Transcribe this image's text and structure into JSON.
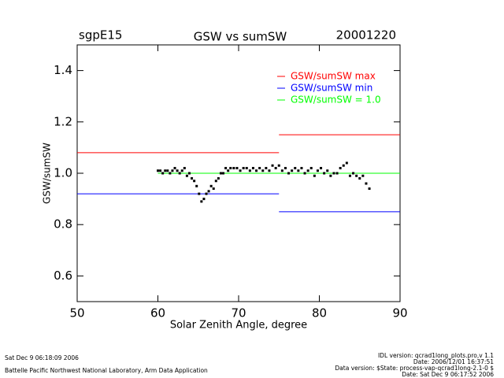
{
  "chart_data": {
    "type": "line",
    "title": "GSW vs sumSW",
    "site": "sgpE15",
    "date": "20001220",
    "xlabel": "Solar Zenith Angle, degree",
    "ylabel": "GSW/sumSW",
    "xlim": [
      50,
      90
    ],
    "ylim": [
      0.5,
      1.5
    ],
    "xticks": [
      50,
      60,
      70,
      80,
      90
    ],
    "yticks": [
      0.6,
      0.8,
      {
        "value": 1,
        "label": "1.0"
      },
      1.2,
      1.4
    ],
    "legend": "upper right",
    "series": [
      {
        "name": "GSW/sumSW max",
        "color": "#ff0000",
        "x": [
          50,
          75,
          75,
          75,
          90
        ],
        "values": [
          1.08,
          1.08,
          null,
          1.15,
          1.15
        ]
      },
      {
        "name": "GSW/sumSW min",
        "color": "#0000ff",
        "x": [
          50,
          75,
          75,
          75,
          90
        ],
        "values": [
          0.92,
          0.92,
          null,
          0.85,
          0.85
        ]
      },
      {
        "name": "GSW/sumSW = 1.0",
        "color": "#00ff00",
        "x": [
          60,
          90
        ],
        "values": [
          1,
          1
        ]
      }
    ],
    "points": {
      "color": "#000000",
      "x": [
        60,
        60.3,
        60.6,
        60.9,
        61.2,
        61.5,
        61.8,
        62.1,
        62.4,
        62.7,
        63,
        63.3,
        63.6,
        63.9,
        64.2,
        64.5,
        64.8,
        65.1,
        65.4,
        65.7,
        66,
        66.3,
        66.6,
        66.9,
        67.2,
        67.5,
        67.8,
        68.1,
        68.4,
        68.7,
        69,
        69.4,
        69.8,
        70.2,
        70.6,
        71,
        71.4,
        71.8,
        72.2,
        72.6,
        73,
        73.4,
        73.8,
        74.2,
        74.6,
        75,
        75.4,
        75.8,
        76.2,
        76.6,
        77,
        77.4,
        77.8,
        78.2,
        78.6,
        79,
        79.4,
        79.8,
        80.2,
        80.6,
        81,
        81.4,
        81.8,
        82.2,
        82.6,
        83,
        83.4,
        83.8,
        84.2,
        84.6,
        85,
        85.4,
        85.8,
        86.2
      ],
      "values": [
        1.01,
        1.01,
        1.0,
        1.01,
        1.01,
        1.0,
        1.01,
        1.02,
        1.01,
        1.0,
        1.01,
        1.02,
        0.99,
        1.0,
        0.98,
        0.97,
        0.95,
        0.92,
        0.89,
        0.9,
        0.92,
        0.93,
        0.95,
        0.94,
        0.97,
        0.98,
        1.0,
        1.0,
        1.02,
        1.01,
        1.02,
        1.02,
        1.02,
        1.01,
        1.02,
        1.02,
        1.01,
        1.02,
        1.01,
        1.02,
        1.01,
        1.02,
        1.01,
        1.03,
        1.02,
        1.03,
        1.01,
        1.02,
        1.0,
        1.01,
        1.02,
        1.01,
        1.02,
        1.0,
        1.01,
        1.02,
        0.99,
        1.01,
        1.02,
        1.0,
        1.01,
        0.99,
        1.0,
        1.0,
        1.02,
        1.03,
        1.04,
        0.99,
        1.0,
        0.99,
        0.98,
        0.99,
        0.96,
        0.94
      ]
    },
    "footer_left": [
      "Sat Dec  9 06:18:09 2006",
      "Battelle Pacific Northwest National Laboratory, Arm Data Application"
    ],
    "footer_right": [
      "IDL version: qcrad1long_plots.pro,v 1.1",
      "Date: 2006/12/01 16:37:51",
      "Data version: $State: process-vap-qcrad1long-2.1-0 $",
      "Date: Sat Dec  9 06:17:52 2006"
    ]
  }
}
